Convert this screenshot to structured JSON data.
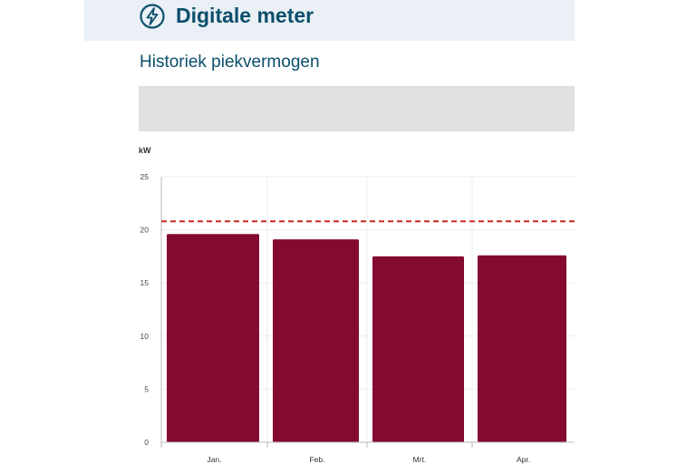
{
  "header": {
    "title": "Digitale meter",
    "icon": "lightning-bolt-circle-icon"
  },
  "section": {
    "title": "Historiek piekvermogen"
  },
  "chart_data": {
    "type": "bar",
    "ylabel": "kW",
    "categories": [
      "Jan.",
      "Feb.",
      "Mrt.",
      "Apr."
    ],
    "series": [
      {
        "values": [
          19.6,
          19.1,
          17.5,
          17.6
        ],
        "color": "#850a30"
      }
    ],
    "reference_line": {
      "value": 20.8,
      "color": "#c62828",
      "style": "dashed"
    },
    "ylim": [
      0,
      25
    ],
    "yticks": [
      0,
      5,
      10,
      15,
      20,
      25
    ],
    "grid": true
  }
}
